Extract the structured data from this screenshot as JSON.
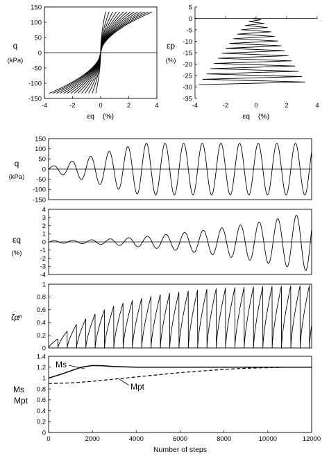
{
  "chart_data": [
    {
      "type": "line",
      "name_hint": "stress-strain loops",
      "xlabel": "εq",
      "xlabel_unit": "(%)",
      "ylabel": "q",
      "ylabel_unit": "(kPa)",
      "xlim": [
        -4,
        4
      ],
      "ylim": [
        -150,
        150
      ],
      "xticks": [
        "-4",
        "-2",
        "0",
        "2",
        "4"
      ],
      "yticks": [
        "150",
        "100",
        "50",
        "0",
        "-50",
        "-100",
        "-150"
      ],
      "grid": false,
      "cycles": 14,
      "q_amplitude": 127,
      "strain_amplitude_first": 0.35,
      "strain_amplitude_last": 3.65
    },
    {
      "type": "line",
      "name_hint": "volumetric strain vs shear strain",
      "xlabel": "εq",
      "xlabel_unit": "(%)",
      "ylabel": "εp",
      "ylabel_unit": "(%)",
      "xlim": [
        -4,
        4
      ],
      "ylim": [
        -35,
        5
      ],
      "xticks": [
        "-4",
        "-2",
        "0",
        "2",
        "4"
      ],
      "yticks": [
        "5",
        "0",
        "-5",
        "-10",
        "-15",
        "-20",
        "-25",
        "-30",
        "-35"
      ],
      "grid": false,
      "ep_final": -29
    },
    {
      "type": "line",
      "name_hint": "q time history",
      "ylabel": "q",
      "ylabel_unit": "(kPa)",
      "xlim": [
        0,
        12000
      ],
      "ylim": [
        -150,
        150
      ],
      "yticks": [
        "150",
        "100",
        "50",
        "0",
        "-50",
        "-100",
        "-150"
      ],
      "grid": false,
      "period_steps": 850,
      "amplitude_final": 127
    },
    {
      "type": "line",
      "name_hint": "shear strain time history",
      "ylabel": "εq",
      "ylabel_unit": "(%)",
      "xlim": [
        0,
        12000
      ],
      "ylim": [
        -4,
        4
      ],
      "yticks": [
        "4",
        "3",
        "2",
        "1",
        "0",
        "-1",
        "-2",
        "-3",
        "-4"
      ],
      "grid": false,
      "amplitude_final": 3.65
    },
    {
      "type": "line",
      "name_hint": "zeta alpha n history",
      "ylabel": "ζαⁿ",
      "xlim": [
        0,
        12000
      ],
      "ylim": [
        0,
        1
      ],
      "yticks": [
        "1",
        "0.8",
        "0.6",
        "0.4",
        "0.2",
        "0"
      ],
      "grid": false,
      "cycle_steps": 425,
      "saturation_value": 1.0
    },
    {
      "type": "line",
      "name_hint": "Ms and Mpt evolution",
      "ylabel": "Ms / Mpt",
      "xlabel": "Number of steps",
      "xlim": [
        0,
        12000
      ],
      "ylim": [
        0,
        1.4
      ],
      "xticks": [
        "0",
        "2000",
        "4000",
        "6000",
        "8000",
        "10000",
        "12000"
      ],
      "yticks": [
        "1.4",
        "1.2",
        "1",
        "0.8",
        "0.6",
        "0.4",
        "0.2",
        "0"
      ],
      "grid": false,
      "series": [
        {
          "name": "Ms",
          "x": [
            0,
            500,
            1000,
            1500,
            2000,
            2500,
            3000,
            4000,
            6000,
            8000,
            10000,
            12000
          ],
          "values": [
            1.0,
            1.06,
            1.13,
            1.2,
            1.23,
            1.225,
            1.21,
            1.2,
            1.2,
            1.2,
            1.2,
            1.2
          ]
        },
        {
          "name": "Mpt",
          "x": [
            0,
            1000,
            2000,
            3000,
            4000,
            5000,
            6000,
            7000,
            8000,
            9000,
            10000,
            11000,
            12000
          ],
          "values": [
            0.9,
            0.91,
            0.94,
            0.98,
            1.02,
            1.06,
            1.1,
            1.13,
            1.16,
            1.18,
            1.19,
            1.2,
            1.2
          ]
        }
      ],
      "annotations": [
        "Ms",
        "Mpt"
      ]
    }
  ]
}
